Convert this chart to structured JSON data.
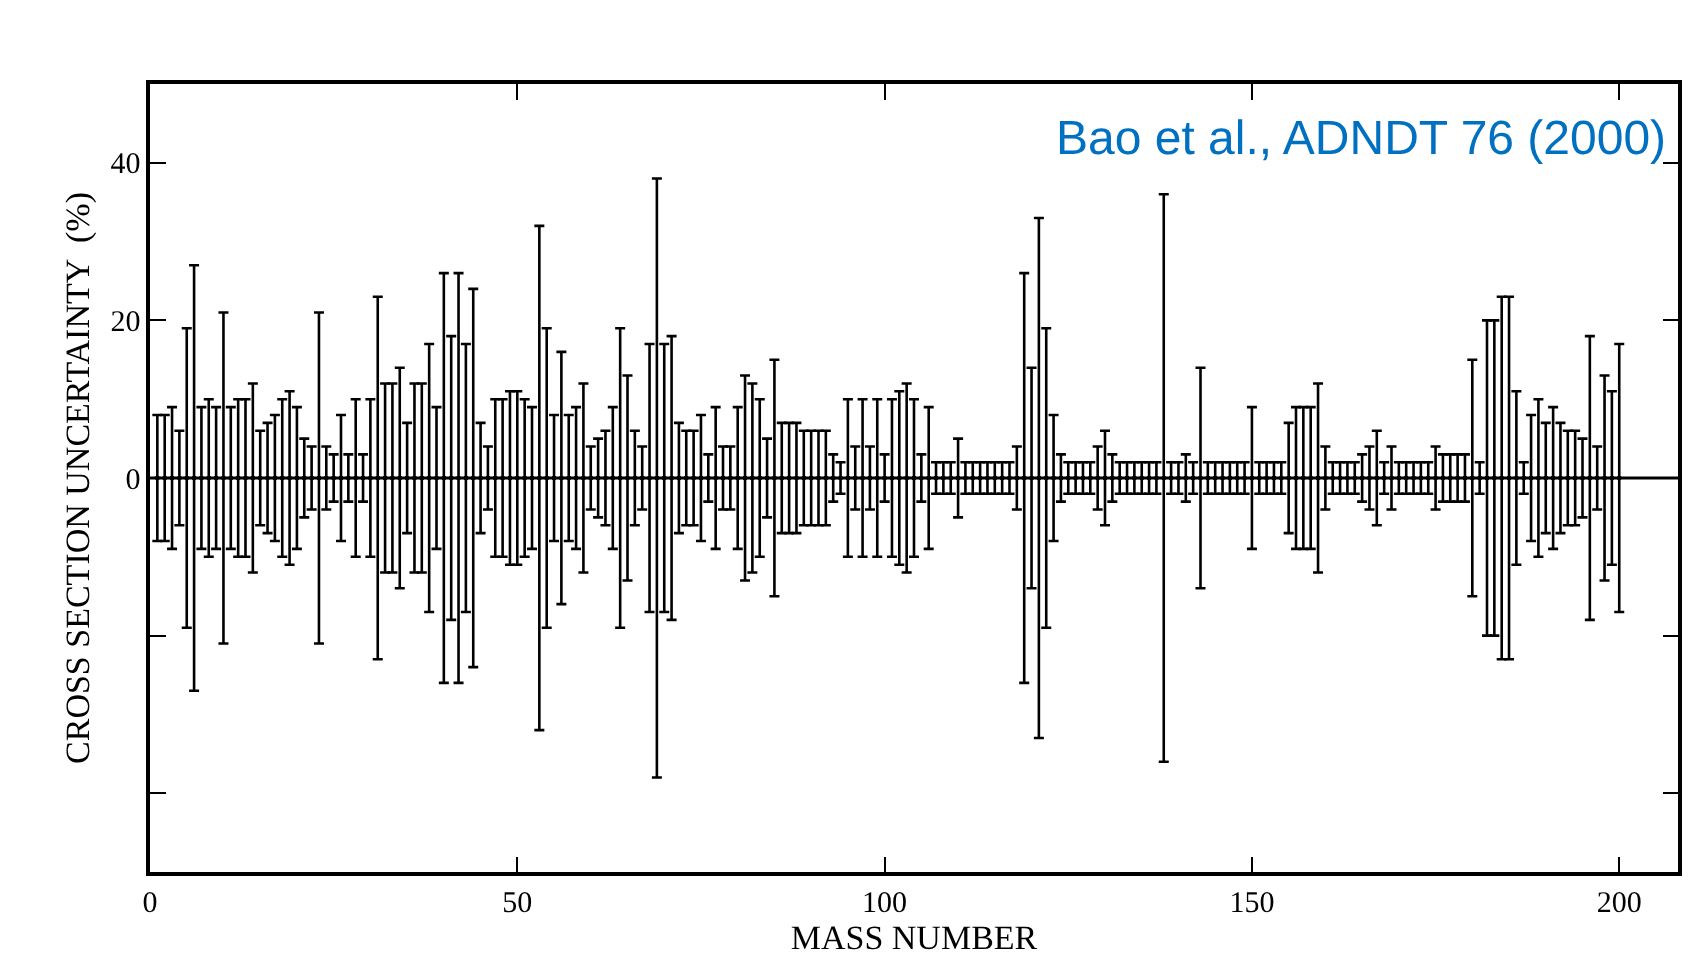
{
  "chart_data": {
    "type": "scatter",
    "xlabel": "MASS NUMBER",
    "ylabel": "CROSS SECTION UNCERTAINTY  (%)",
    "annotations": [
      "Bao et al., ADNDT 76 (2000)"
    ],
    "xlim": [
      0,
      208
    ],
    "xticks": [
      0,
      50,
      100,
      150,
      200
    ],
    "ylim": [
      -50,
      50
    ],
    "yticks": [
      {
        "value": -40,
        "label": null
      },
      {
        "value": -20,
        "label": null
      },
      0,
      20,
      40
    ],
    "ref_lines": [
      {
        "axis": "y",
        "value": 0,
        "color": "#000000"
      }
    ],
    "marker": "square",
    "series": [
      {
        "color": "#000000",
        "x": [
          1,
          2,
          3,
          4,
          5,
          6,
          7,
          8,
          9,
          10,
          11,
          12,
          13,
          14,
          15,
          16,
          17,
          18,
          19,
          20,
          21,
          22,
          23,
          24,
          25,
          26,
          27,
          28,
          29,
          30,
          31,
          32,
          33,
          34,
          35,
          36,
          37,
          38,
          39,
          40,
          41,
          42,
          43,
          44,
          45,
          46,
          47,
          48,
          49,
          50,
          51,
          52,
          53,
          54,
          55,
          56,
          57,
          58,
          59,
          60,
          61,
          62,
          63,
          64,
          65,
          66,
          67,
          68,
          69,
          70,
          71,
          72,
          73,
          74,
          75,
          76,
          77,
          78,
          79,
          80,
          81,
          82,
          83,
          84,
          85,
          86,
          87,
          88,
          89,
          90,
          91,
          92,
          93,
          94,
          95,
          96,
          97,
          98,
          99,
          100,
          101,
          102,
          103,
          104,
          105,
          106,
          107,
          108,
          109,
          110,
          111,
          112,
          113,
          114,
          115,
          116,
          117,
          118,
          119,
          120,
          121,
          122,
          123,
          124,
          125,
          126,
          127,
          128,
          129,
          130,
          131,
          132,
          133,
          134,
          135,
          136,
          137,
          138,
          139,
          140,
          141,
          142,
          143,
          144,
          145,
          146,
          147,
          148,
          149,
          150,
          151,
          152,
          153,
          154,
          155,
          156,
          157,
          158,
          159,
          160,
          161,
          162,
          163,
          164,
          165,
          166,
          167,
          168,
          169,
          170,
          171,
          172,
          173,
          174,
          175,
          176,
          177,
          178,
          179,
          180,
          181,
          182,
          183,
          184,
          185,
          186,
          187,
          188,
          189,
          190,
          191,
          192,
          193,
          194,
          195,
          196,
          197,
          198,
          199,
          200
        ],
        "values": [
          0,
          0,
          0,
          0,
          0,
          0,
          0,
          0,
          0,
          0,
          0,
          0,
          0,
          0,
          0,
          0,
          0,
          0,
          0,
          0,
          0,
          0,
          0,
          0,
          0,
          0,
          0,
          0,
          0,
          0,
          0,
          0,
          0,
          0,
          0,
          0,
          0,
          0,
          0,
          0,
          0,
          0,
          0,
          0,
          0,
          0,
          0,
          0,
          0,
          0,
          0,
          0,
          0,
          0,
          0,
          0,
          0,
          0,
          0,
          0,
          0,
          0,
          0,
          0,
          0,
          0,
          0,
          0,
          0,
          0,
          0,
          0,
          0,
          0,
          0,
          0,
          0,
          0,
          0,
          0,
          0,
          0,
          0,
          0,
          0,
          0,
          0,
          0,
          0,
          0,
          0,
          0,
          0,
          0,
          0,
          0,
          0,
          0,
          0,
          0,
          0,
          0,
          0,
          0,
          0,
          0,
          0,
          0,
          0,
          0,
          0,
          0,
          0,
          0,
          0,
          0,
          0,
          0,
          0,
          0,
          0,
          0,
          0,
          0,
          0,
          0,
          0,
          0,
          0,
          0,
          0,
          0,
          0,
          0,
          0,
          0,
          0,
          0,
          0,
          0,
          0,
          0,
          0,
          0,
          0,
          0,
          0,
          0,
          0,
          0,
          0,
          0,
          0,
          0,
          0,
          0,
          0,
          0,
          0,
          0,
          0,
          0,
          0,
          0,
          0,
          0,
          0,
          0,
          0,
          0,
          0,
          0,
          0,
          0,
          0,
          0,
          0,
          0,
          0,
          0,
          0,
          0,
          0,
          0,
          0,
          0,
          0,
          0,
          0,
          0,
          0,
          0,
          0,
          0,
          0,
          0,
          0,
          0,
          0,
          0
        ],
        "errors": [
          8,
          8,
          9,
          6,
          19,
          27,
          9,
          10,
          9,
          21,
          9,
          10,
          10,
          12,
          6,
          7,
          8,
          10,
          11,
          9,
          5,
          4,
          21,
          4,
          3,
          8,
          3,
          10,
          3,
          10,
          23,
          12,
          12,
          14,
          7,
          12,
          12,
          17,
          9,
          26,
          18,
          26,
          17,
          24,
          7,
          4,
          10,
          10,
          11,
          11,
          10,
          9,
          32,
          19,
          8,
          16,
          8,
          9,
          12,
          4,
          5,
          6,
          9,
          19,
          13,
          6,
          4,
          17,
          38,
          17,
          18,
          7,
          6,
          6,
          8,
          3,
          9,
          4,
          4,
          9,
          13,
          12,
          10,
          5,
          15,
          7,
          7,
          7,
          6,
          6,
          6,
          6,
          3,
          2,
          10,
          4,
          10,
          4,
          10,
          3,
          10,
          11,
          12,
          10,
          3,
          9,
          2,
          2,
          2,
          5,
          2,
          2,
          2,
          2,
          2,
          2,
          2,
          4,
          26,
          14,
          33,
          19,
          8,
          3,
          2,
          2,
          2,
          2,
          4,
          6,
          3,
          2,
          2,
          2,
          2,
          2,
          2,
          36,
          2,
          2,
          3,
          2,
          14,
          2,
          2,
          2,
          2,
          2,
          2,
          9,
          2,
          2,
          2,
          2,
          7,
          9,
          9,
          9,
          12,
          4,
          2,
          2,
          2,
          2,
          3,
          4,
          6,
          2,
          4,
          2,
          2,
          2,
          2,
          2,
          4,
          3,
          3,
          3,
          3,
          15,
          2,
          20,
          20,
          23,
          23,
          11,
          2,
          8,
          10,
          7,
          9,
          7,
          6,
          6,
          5,
          18,
          4,
          13,
          11,
          17
        ]
      }
    ]
  }
}
